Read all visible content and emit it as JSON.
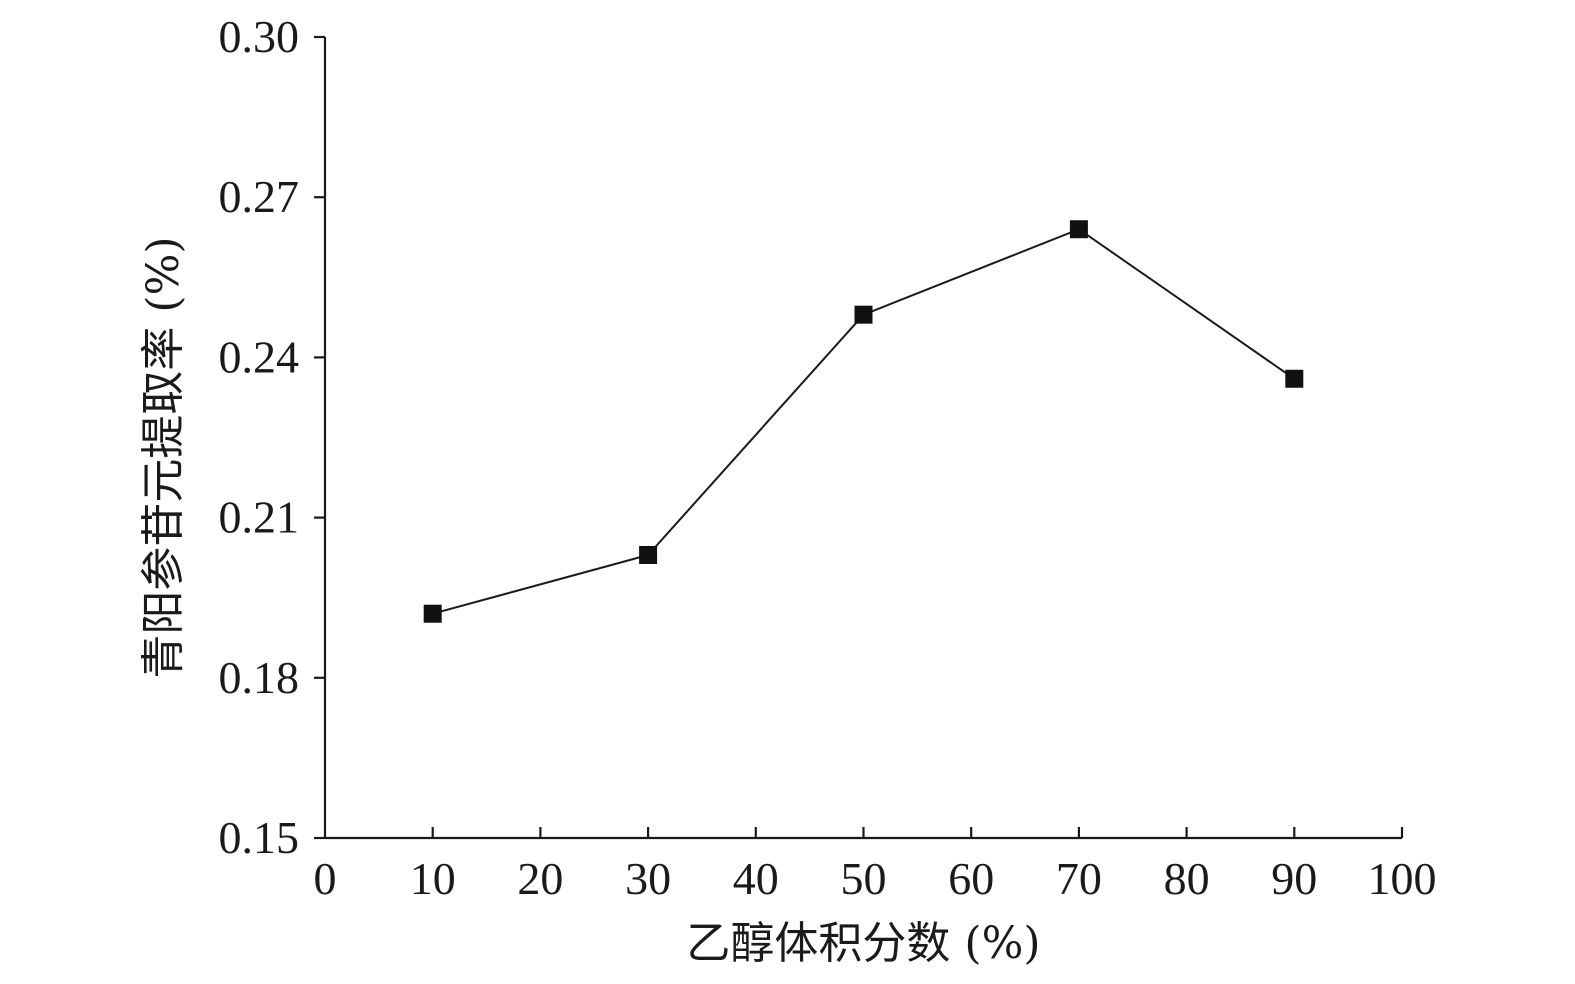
{
  "chart_data": {
    "type": "line",
    "title": "",
    "xlabel": "乙醇体积分数 (%)",
    "ylabel": "青阳参苷元提取率 (%)",
    "xlim": [
      0,
      100
    ],
    "ylim": [
      0.15,
      0.3
    ],
    "x_ticks": [
      0,
      10,
      20,
      30,
      40,
      50,
      60,
      70,
      80,
      90,
      100
    ],
    "x_tick_labels": [
      "0",
      "10",
      "20",
      "30",
      "40",
      "50",
      "60",
      "70",
      "80",
      "90",
      "100"
    ],
    "y_ticks": [
      0.15,
      0.18,
      0.21,
      0.24,
      0.27,
      0.3
    ],
    "y_tick_labels": [
      "0.15",
      "0.18",
      "0.21",
      "0.24",
      "0.27",
      "0.30"
    ],
    "grid": false,
    "legend": "none",
    "series": [
      {
        "marker": "square",
        "color": "#111111",
        "x": [
          10,
          30,
          50,
          70,
          90
        ],
        "y": [
          0.192,
          0.203,
          0.248,
          0.264,
          0.236
        ]
      }
    ]
  }
}
